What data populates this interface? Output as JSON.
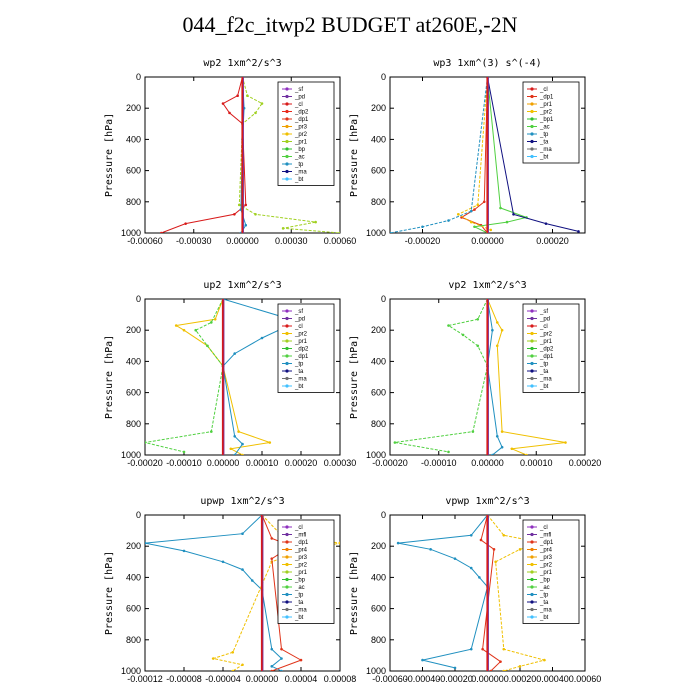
{
  "page": {
    "title": "044_f2c_itwp2  BUDGET at260E,-2N"
  },
  "chart_data": [
    {
      "type": "line",
      "title": "wp2  1xm^2/s^3",
      "ylabel": "Pressure [hPa]",
      "xlim": [
        -0.0006,
        0.0006
      ],
      "ylim": [
        1000,
        0
      ],
      "xticks": [
        -0.0006,
        -0.0003,
        0,
        0.0003,
        0.0006
      ],
      "xtick_labels": [
        "-0.00060",
        "-0.00030",
        "0.00000",
        "0.00030",
        "0.00060"
      ],
      "yticks": [
        0,
        200,
        400,
        600,
        800,
        1000
      ],
      "legend": [
        "_sf",
        "_pd",
        "_cl",
        "_dp2",
        "_dp1",
        "_pr3",
        "_pr2",
        "_pr1",
        "_bp",
        "_ac",
        "_tp",
        "_ma",
        "_bt"
      ],
      "legend_colors": [
        "#8f2fbf",
        "#7030a0",
        "#d81a1a",
        "#e8281a",
        "#e0341a",
        "#f0a000",
        "#f0c000",
        "#a0d020",
        "#30c030",
        "#50d040",
        "#2090c0",
        "#101080",
        "#40c0ff"
      ],
      "series": [
        {
          "name": "_cl",
          "y": [
            0,
            120,
            170,
            230,
            300,
            820,
            880,
            940,
            1000
          ],
          "x": [
            0,
            -3e-05,
            -0.00012,
            -8e-05,
            0,
            2e-05,
            -5e-05,
            -0.00035,
            -0.0005
          ]
        },
        {
          "name": "_pr1",
          "y": [
            0,
            120,
            170,
            230,
            300,
            820,
            880,
            930,
            970,
            1000
          ],
          "x": [
            0,
            3e-05,
            0.00012,
            8e-05,
            0,
            -2e-05,
            8e-05,
            0.00045,
            0.00025,
            0.0006
          ]
        },
        {
          "name": "_tp",
          "y": [
            0,
            200,
            400,
            850,
            950,
            1000
          ],
          "x": [
            0,
            1e-05,
            0,
            -1e-05,
            2e-05,
            -1e-05
          ]
        }
      ]
    },
    {
      "type": "line",
      "title": "wp3  1xm^(3) s^(-4)",
      "ylabel": "Pressure [hPa]",
      "xlim": [
        -0.0003,
        0.0003
      ],
      "ylim": [
        1000,
        0
      ],
      "xticks": [
        -0.0002,
        0,
        0.0002
      ],
      "xtick_labels": [
        "-0.00020",
        "0.00000",
        "0.00020"
      ],
      "yticks": [
        0,
        200,
        400,
        600,
        800,
        1000
      ],
      "legend": [
        "_cl",
        "_dp1",
        "_pr1",
        "_pr2",
        "_bp1",
        "_ac",
        "_tp",
        "_ta",
        "_ma",
        "_bt"
      ],
      "legend_colors": [
        "#d81a1a",
        "#e0341a",
        "#f0a000",
        "#f0c000",
        "#30c030",
        "#50d040",
        "#2090c0",
        "#101080",
        "#707070",
        "#40c0ff"
      ],
      "series": [
        {
          "name": "_dp1",
          "y": [
            0,
            800,
            850,
            900,
            950,
            1000
          ],
          "x": [
            0,
            -1e-05,
            -4e-05,
            -8e-05,
            -2e-05,
            0
          ]
        },
        {
          "name": "_pr2",
          "y": [
            0,
            820,
            880,
            930,
            980
          ],
          "x": [
            0,
            -3e-05,
            -9e-05,
            -5e-05,
            1e-05
          ]
        },
        {
          "name": "_ac",
          "y": [
            0,
            840,
            900,
            930,
            960,
            1000
          ],
          "x": [
            0,
            4e-05,
            0.00012,
            6e-05,
            -4e-05,
            0
          ]
        },
        {
          "name": "_tp",
          "y": [
            0,
            860,
            920,
            960,
            1000
          ],
          "x": [
            0,
            -5e-05,
            -0.00012,
            -0.0002,
            -0.0003
          ]
        },
        {
          "name": "_ta",
          "y": [
            0,
            880,
            940,
            990
          ],
          "x": [
            0,
            8e-05,
            0.00018,
            0.00028
          ]
        }
      ]
    },
    {
      "type": "line",
      "title": "up2  1xm^2/s^3",
      "ylabel": "Pressure [hPa]",
      "xlim": [
        -0.0002,
        0.0003
      ],
      "ylim": [
        1000,
        0
      ],
      "xticks": [
        -0.0002,
        -0.0001,
        0,
        0.0001,
        0.0002,
        0.0003
      ],
      "xtick_labels": [
        "-0.00020",
        "-0.00010",
        "0.00000",
        "0.00010",
        "0.00020",
        "0.00030"
      ],
      "yticks": [
        0,
        200,
        400,
        600,
        800,
        1000
      ],
      "legend": [
        "_sf",
        "_pd",
        "_cl",
        "_pr2",
        "_pr1",
        "_dp2",
        "_dp1",
        "_tp",
        "_ta",
        "_ma",
        "_bt"
      ],
      "legend_colors": [
        "#8f2fbf",
        "#7030a0",
        "#d81a1a",
        "#f0c000",
        "#a0d020",
        "#30c030",
        "#50d040",
        "#2090c0",
        "#101080",
        "#707070",
        "#40c0ff"
      ],
      "series": [
        {
          "name": "_pr2",
          "y": [
            0,
            130,
            170,
            200,
            300,
            430,
            850,
            920,
            960,
            1000
          ],
          "x": [
            0,
            -2e-05,
            -0.00012,
            -0.0001,
            -4e-05,
            0,
            4e-05,
            0.00012,
            2e-05,
            5e-05
          ]
        },
        {
          "name": "_dp1",
          "y": [
            0,
            150,
            200,
            300,
            430,
            850,
            920,
            980
          ],
          "x": [
            0,
            -3e-05,
            -7e-05,
            -4e-05,
            0,
            -3e-05,
            -0.0002,
            -0.0001
          ]
        },
        {
          "name": "_tp",
          "y": [
            0,
            150,
            180,
            250,
            350,
            430,
            880,
            930,
            1000
          ],
          "x": [
            0,
            0.0002,
            0.00016,
            0.0001,
            3e-05,
            0,
            3e-05,
            5e-05,
            3e-05
          ]
        }
      ]
    },
    {
      "type": "line",
      "title": "vp2  1xm^2/s^3",
      "ylabel": "Pressure [hPa]",
      "xlim": [
        -0.0002,
        0.0002
      ],
      "ylim": [
        1000,
        0
      ],
      "xticks": [
        -0.0002,
        -0.0001,
        0,
        0.0001,
        0.0002
      ],
      "xtick_labels": [
        "-0.00020",
        "-0.00010",
        "0.00000",
        "0.00010",
        "0.00020"
      ],
      "yticks": [
        0,
        200,
        400,
        600,
        800,
        1000
      ],
      "legend": [
        "_sf",
        "_pd",
        "_cl",
        "_pr2",
        "_pr1",
        "_dp2",
        "_dp1",
        "_tp",
        "_ta",
        "_ma",
        "_bt"
      ],
      "legend_colors": [
        "#8f2fbf",
        "#7030a0",
        "#d81a1a",
        "#f0c000",
        "#a0d020",
        "#30c030",
        "#50d040",
        "#2090c0",
        "#101080",
        "#707070",
        "#40c0ff"
      ],
      "series": [
        {
          "name": "_pr2",
          "y": [
            0,
            150,
            200,
            300,
            850,
            920,
            960,
            1000
          ],
          "x": [
            0,
            2e-05,
            3e-05,
            2e-05,
            3e-05,
            0.00016,
            5e-05,
            8e-05
          ]
        },
        {
          "name": "_dp1",
          "y": [
            0,
            130,
            170,
            230,
            300,
            430,
            850,
            920,
            980
          ],
          "x": [
            0,
            -2e-05,
            -8e-05,
            -5e-05,
            -2e-05,
            0,
            -3e-05,
            -0.00019,
            -8e-05
          ]
        },
        {
          "name": "_tp",
          "y": [
            0,
            200,
            430,
            880,
            950,
            1000
          ],
          "x": [
            0,
            1e-05,
            0,
            2e-05,
            3e-05,
            1e-05
          ]
        }
      ]
    },
    {
      "type": "line",
      "title": "upwp  1xm^2/s^3",
      "ylabel": "Pressure [hPa]",
      "xlim": [
        -0.00012,
        8e-05
      ],
      "ylim": [
        1000,
        0
      ],
      "xticks": [
        -0.00012,
        -8e-05,
        -4e-05,
        0,
        4e-05,
        8e-05
      ],
      "xtick_labels": [
        "-0.00012",
        "-0.00008",
        "-0.00004",
        "0.00000",
        "0.00004",
        "0.00008"
      ],
      "yticks": [
        0,
        200,
        400,
        600,
        800,
        1000
      ],
      "legend": [
        "_cl",
        "_mfl",
        "_dp1",
        "_pr4",
        "_pr3",
        "_pr2",
        "_pr1",
        "_bp",
        "_ac",
        "_tp",
        "_ta",
        "_ma",
        "_bt"
      ],
      "legend_colors": [
        "#8f2fbf",
        "#7030a0",
        "#e0341a",
        "#f08000",
        "#f0a000",
        "#f0c000",
        "#a0d020",
        "#30c030",
        "#50d040",
        "#2090c0",
        "#101080",
        "#707070",
        "#40c0ff"
      ],
      "series": [
        {
          "name": "_tp",
          "y": [
            0,
            120,
            180,
            230,
            300,
            350,
            420,
            480,
            860,
            920,
            970,
            1000
          ],
          "x": [
            0,
            -2e-05,
            -0.00012,
            -8e-05,
            -4e-05,
            -2e-05,
            -1e-05,
            0,
            1e-05,
            2e-05,
            1e-05,
            2e-05
          ]
        },
        {
          "name": "_pr2",
          "y": [
            0,
            130,
            180,
            230,
            300,
            880,
            920,
            960,
            1000
          ],
          "x": [
            0,
            2e-05,
            8e-05,
            4e-05,
            1e-05,
            -3e-05,
            -5e-05,
            -2e-05,
            -3e-05
          ]
        },
        {
          "name": "_dp1",
          "y": [
            0,
            150,
            200,
            280,
            860,
            930,
            1000
          ],
          "x": [
            0,
            1e-05,
            3e-05,
            1e-05,
            2e-05,
            4e-05,
            1e-05
          ]
        }
      ]
    },
    {
      "type": "line",
      "title": "vpwp  1xm^2/s^3",
      "ylabel": "Pressure [hPa]",
      "xlim": [
        -0.0006,
        0.0006
      ],
      "ylim": [
        1000,
        0
      ],
      "xticks": [
        -0.0006,
        -0.0004,
        -0.0002,
        0,
        0.0002,
        0.0004,
        0.0006
      ],
      "xtick_labels": [
        "-0.00060",
        "-0.00040",
        "-0.00020",
        "0.00000",
        "0.00020",
        "0.00040",
        "0.00060"
      ],
      "yticks": [
        0,
        200,
        400,
        600,
        800,
        1000
      ],
      "legend": [
        "_cl",
        "_mfl",
        "_dp1",
        "_pr4",
        "_pr3",
        "_pr2",
        "_pr1",
        "_bp",
        "_ac",
        "_tp",
        "_ta",
        "_ma",
        "_bt"
      ],
      "legend_colors": [
        "#8f2fbf",
        "#7030a0",
        "#e0341a",
        "#f08000",
        "#f0a000",
        "#f0c000",
        "#a0d020",
        "#30c030",
        "#50d040",
        "#2090c0",
        "#101080",
        "#707070",
        "#40c0ff"
      ],
      "series": [
        {
          "name": "_tp",
          "y": [
            0,
            130,
            180,
            220,
            280,
            340,
            400,
            460,
            860,
            930,
            980
          ],
          "x": [
            0,
            -0.0001,
            -0.00055,
            -0.00035,
            -0.0002,
            -0.0001,
            -5e-05,
            0,
            -0.0001,
            -0.0004,
            -0.0002
          ]
        },
        {
          "name": "_pr2",
          "y": [
            0,
            130,
            180,
            220,
            300,
            860,
            930,
            970,
            1000
          ],
          "x": [
            0,
            0.0001,
            0.00035,
            0.0002,
            5e-05,
            0.0001,
            0.00035,
            0.0002,
            0.0001
          ]
        },
        {
          "name": "_dp1",
          "y": [
            0,
            160,
            220,
            860,
            940,
            1000
          ],
          "x": [
            0,
            -4e-05,
            4e-05,
            -3e-05,
            8e-05,
            2e-05
          ]
        }
      ]
    }
  ]
}
